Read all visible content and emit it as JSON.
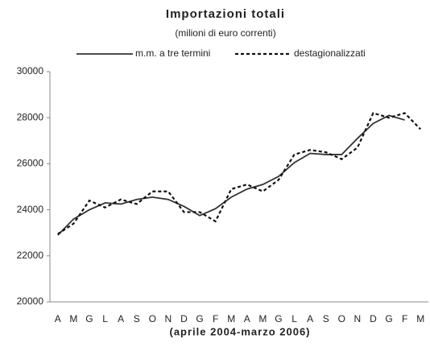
{
  "chart_data": {
    "type": "line",
    "title": "Importazioni totali",
    "subtitle": "(milioni di euro correnti)",
    "x_label": "(aprile 2004-marzo 2006)",
    "categories": [
      "A",
      "M",
      "G",
      "L",
      "A",
      "S",
      "O",
      "N",
      "D",
      "G",
      "F",
      "M",
      "A",
      "M",
      "G",
      "L",
      "A",
      "S",
      "O",
      "N",
      "D",
      "G",
      "F",
      "M"
    ],
    "series": [
      {
        "name": "m.m. a tre termini",
        "color": "#333333",
        "dash": false,
        "values": [
          22900,
          23600,
          24000,
          24300,
          24250,
          24450,
          24550,
          24450,
          24150,
          23750,
          24050,
          24550,
          24900,
          25100,
          25450,
          26050,
          26450,
          26400,
          26400,
          27100,
          27750,
          28100,
          27900,
          null
        ]
      },
      {
        "name": "destagionalizzati",
        "color": "#111111",
        "dash": true,
        "values": [
          22950,
          23400,
          24400,
          24100,
          24450,
          24250,
          24800,
          24800,
          23900,
          23900,
          23500,
          24900,
          25100,
          24800,
          25300,
          26400,
          26600,
          26500,
          26200,
          26700,
          28200,
          28000,
          28200,
          27500
        ]
      }
    ],
    "ylim": [
      20000,
      30000
    ],
    "yticks": [
      20000,
      22000,
      24000,
      26000,
      28000,
      30000
    ],
    "grid": false,
    "legend": "top"
  }
}
